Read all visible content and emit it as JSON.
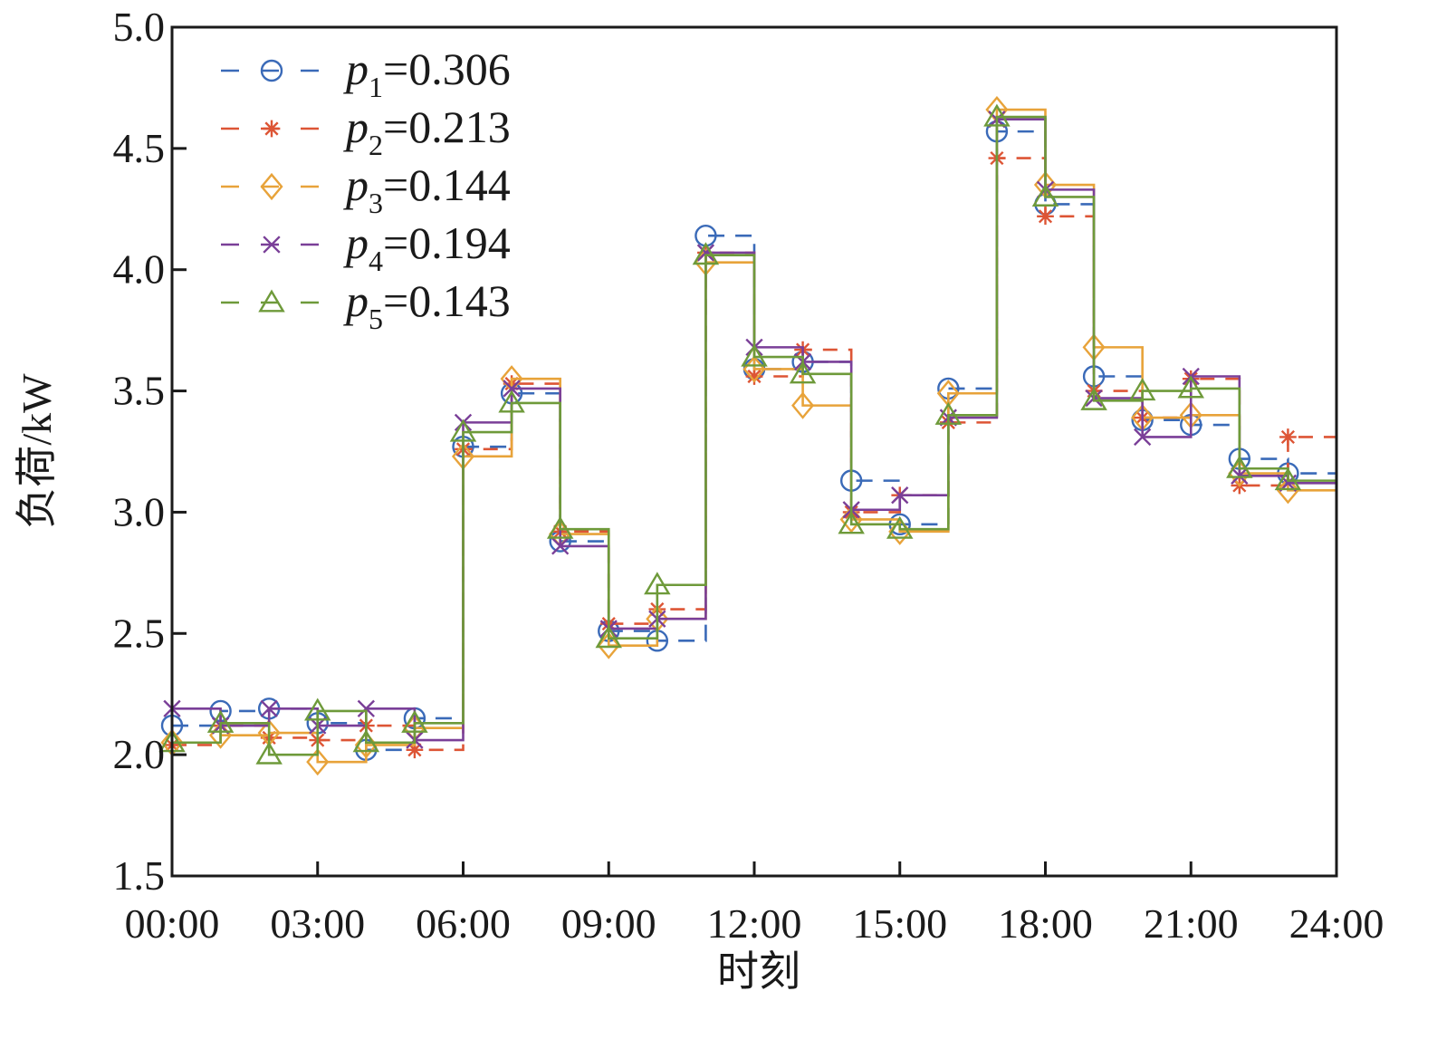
{
  "chart_data": {
    "type": "line",
    "step": "post",
    "xlabel": "时刻",
    "ylabel": "负荷/kW",
    "ylim": [
      1.5,
      5.0
    ],
    "yticks": [
      "1.5",
      "2.0",
      "2.5",
      "3.0",
      "3.5",
      "4.0",
      "4.5",
      "5.0"
    ],
    "xlim": [
      0,
      24
    ],
    "xticks": [
      "00:00",
      "03:00",
      "06:00",
      "09:00",
      "12:00",
      "15:00",
      "18:00",
      "21:00",
      "24:00"
    ],
    "legend_position": "top-left",
    "series": [
      {
        "name": "p1=0.306",
        "legend_var": "p",
        "legend_sub": "1",
        "legend_val": "=0.306",
        "color": "#3a6ab8",
        "marker": "circle",
        "values": [
          2.12,
          2.18,
          2.19,
          2.13,
          2.02,
          2.15,
          3.27,
          3.49,
          2.88,
          2.51,
          2.47,
          4.14,
          3.59,
          3.62,
          3.13,
          2.95,
          3.51,
          4.57,
          4.27,
          3.56,
          3.38,
          3.36,
          3.22,
          3.16
        ]
      },
      {
        "name": "p2=0.213",
        "legend_var": "p",
        "legend_sub": "2",
        "legend_val": "=0.213",
        "color": "#dd5535",
        "marker": "asterisk",
        "values": [
          2.04,
          2.12,
          2.07,
          2.06,
          2.12,
          2.02,
          3.26,
          3.53,
          2.92,
          2.54,
          2.6,
          4.07,
          3.56,
          3.67,
          3.0,
          3.07,
          3.37,
          4.46,
          4.22,
          3.5,
          3.39,
          3.55,
          3.11,
          3.31
        ]
      },
      {
        "name": "p3=0.144",
        "legend_var": "p",
        "legend_sub": "3",
        "legend_val": "=0.144",
        "color": "#e8a33a",
        "marker": "diamond",
        "values": [
          2.05,
          2.08,
          2.09,
          1.97,
          2.04,
          2.11,
          3.23,
          3.55,
          2.91,
          2.45,
          2.56,
          4.03,
          3.59,
          3.44,
          2.97,
          2.92,
          3.49,
          4.66,
          4.35,
          3.68,
          3.39,
          3.4,
          3.16,
          3.09
        ]
      },
      {
        "name": "p4=0.194",
        "legend_var": "p",
        "legend_sub": "4",
        "legend_val": "=0.194",
        "color": "#7a3f98",
        "marker": "cross",
        "values": [
          2.19,
          2.12,
          2.19,
          2.12,
          2.19,
          2.06,
          3.37,
          3.51,
          2.86,
          2.52,
          2.56,
          4.07,
          3.68,
          3.62,
          3.01,
          3.07,
          3.39,
          4.62,
          4.33,
          3.47,
          3.31,
          3.56,
          3.15,
          3.12
        ]
      },
      {
        "name": "p5=0.143",
        "legend_var": "p",
        "legend_sub": "5",
        "legend_val": "=0.143",
        "color": "#6e9a3a",
        "marker": "triangle",
        "values": [
          2.05,
          2.13,
          2.0,
          2.18,
          2.05,
          2.13,
          3.33,
          3.45,
          2.93,
          2.48,
          2.7,
          4.06,
          3.64,
          3.57,
          2.95,
          2.93,
          3.4,
          4.63,
          4.3,
          3.46,
          3.5,
          3.51,
          3.18,
          3.13
        ]
      }
    ]
  }
}
